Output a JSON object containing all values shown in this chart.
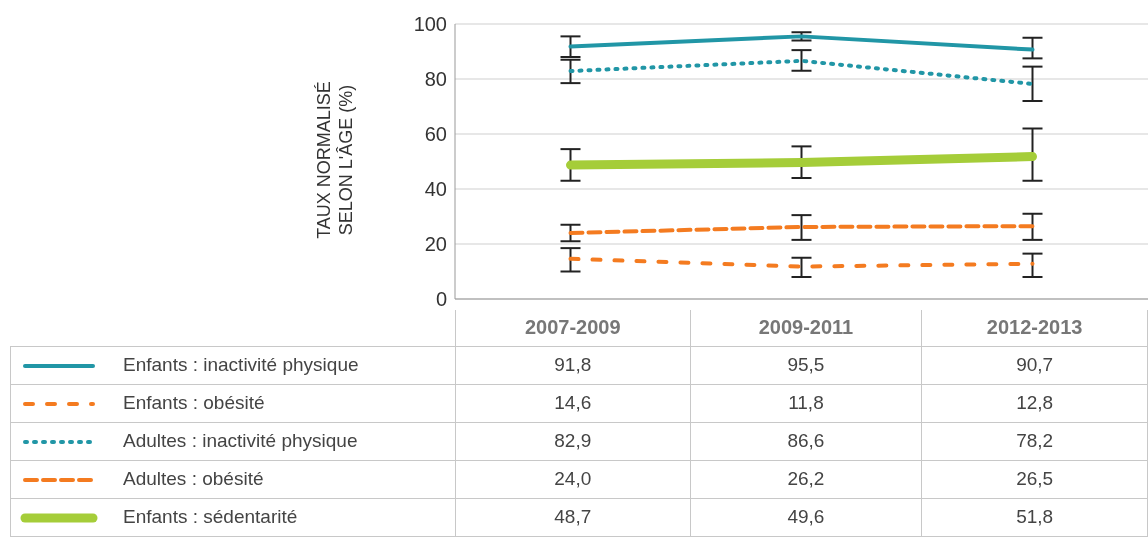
{
  "chart_data": {
    "type": "line",
    "ylabel": "TAUX NORMALISÉ SELON L'ÂGE (%)",
    "categories": [
      "2007-2009",
      "2009-2011",
      "2012-2013"
    ],
    "ylim": [
      0,
      100
    ],
    "yticks": [
      0,
      20,
      40,
      60,
      80,
      100
    ],
    "grid": "y",
    "legend": "bottom left",
    "marker": "none",
    "series": [
      {
        "name": "Enfants : inactivité physique",
        "color": "#2196a6",
        "line_style": "solid",
        "values": [
          91.8,
          95.5,
          90.7
        ],
        "value_labels": [
          "91,8",
          "95,5",
          "90,7"
        ],
        "errors": [
          [
            88,
            95.5
          ],
          [
            94,
            97
          ],
          [
            87.5,
            95
          ]
        ]
      },
      {
        "name": "Enfants : obésité",
        "color": "#f47b20",
        "line_style": "dashed",
        "values": [
          14.6,
          11.8,
          12.8
        ],
        "value_labels": [
          "14,6",
          "11,8",
          "12,8"
        ],
        "errors": [
          [
            10,
            18.5
          ],
          [
            8,
            15
          ],
          [
            8,
            16.5
          ]
        ]
      },
      {
        "name": "Adultes : inactivité physique",
        "color": "#2196a6",
        "line_style": "dotted",
        "values": [
          82.9,
          86.6,
          78.2
        ],
        "value_labels": [
          "82,9",
          "86,6",
          "78,2"
        ],
        "errors": [
          [
            78.5,
            87
          ],
          [
            83,
            90.5
          ],
          [
            72,
            84.5
          ]
        ]
      },
      {
        "name": "Adultes : obésité",
        "color": "#f47b20",
        "line_style": "dashed",
        "values": [
          24.0,
          26.2,
          26.5
        ],
        "value_labels": [
          "24,0",
          "26,2",
          "26,5"
        ],
        "errors": [
          [
            21,
            27
          ],
          [
            21.5,
            30.5
          ],
          [
            21.5,
            31
          ]
        ]
      },
      {
        "name": "Enfants : sédentarité",
        "color": "#a5cd39",
        "line_style": "solid",
        "values": [
          48.7,
          49.6,
          51.8
        ],
        "value_labels": [
          "48,7",
          "49,6",
          "51,8"
        ],
        "errors": [
          [
            43,
            54.5
          ],
          [
            44,
            55.5
          ],
          [
            43,
            62
          ]
        ]
      }
    ]
  }
}
